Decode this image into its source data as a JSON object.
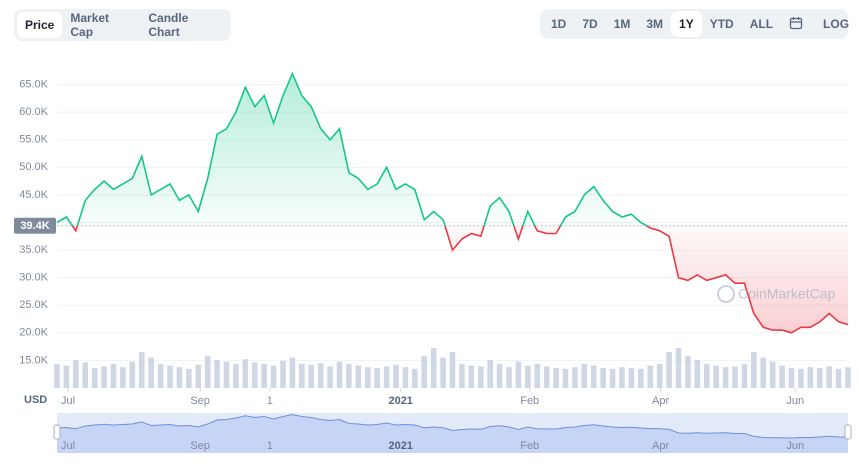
{
  "tabs": [
    "Price",
    "Market Cap",
    "Candle Chart"
  ],
  "active_tab": 0,
  "ranges": [
    "1D",
    "7D",
    "1M",
    "3M",
    "1Y",
    "YTD",
    "ALL"
  ],
  "active_range": 4,
  "log": "LOG",
  "watermark": "CoinMarketCap",
  "currency": "USD",
  "chart_data": {
    "type": "line",
    "values": [
      40000,
      41000,
      38500,
      44000,
      46000,
      47500,
      46000,
      47000,
      48000,
      52000,
      45000,
      46000,
      47000,
      44000,
      45000,
      42000,
      48000,
      56000,
      57000,
      60000,
      64500,
      61000,
      63000,
      58000,
      63000,
      67000,
      63000,
      61000,
      57000,
      55000,
      57000,
      49000,
      48000,
      46000,
      47000,
      50000,
      46000,
      47000,
      46000,
      40500,
      42000,
      40500,
      35000,
      37000,
      38000,
      37500,
      43000,
      44500,
      42000,
      37000,
      42000,
      38500,
      38000,
      38000,
      41000,
      42000,
      45000,
      46500,
      44000,
      42000,
      41000,
      41500,
      40000,
      39000,
      38500,
      37500,
      30000,
      29500,
      30500,
      29500,
      30000,
      30500,
      29000,
      29000,
      23500,
      21000,
      20500,
      20500,
      20000,
      21000,
      21000,
      22000,
      23500,
      22000,
      21500
    ],
    "volume": [
      30,
      28,
      35,
      32,
      25,
      27,
      30,
      26,
      33,
      45,
      38,
      30,
      28,
      26,
      24,
      29,
      40,
      35,
      33,
      30,
      36,
      32,
      30,
      28,
      34,
      38,
      30,
      29,
      31,
      27,
      33,
      30,
      28,
      26,
      25,
      27,
      29,
      26,
      24,
      40,
      50,
      38,
      45,
      30,
      28,
      27,
      35,
      30,
      26,
      33,
      28,
      30,
      27,
      25,
      24,
      26,
      30,
      28,
      25,
      24,
      26,
      25,
      24,
      28,
      30,
      45,
      50,
      40,
      35,
      30,
      28,
      26,
      27,
      30,
      45,
      38,
      33,
      28,
      25,
      24,
      26,
      25,
      27,
      24,
      26
    ],
    "volume_lim": [
      0,
      100
    ],
    "up_color": "#16c784",
    "down_color": "#ea3943",
    "baseline": {
      "value": 39400,
      "label": "39.4K"
    },
    "ylim": [
      10000,
      70000
    ],
    "yticks": [
      {
        "value": 15000,
        "label": "15.0K"
      },
      {
        "value": 20000,
        "label": "20.0K"
      },
      {
        "value": 25000,
        "label": "25.0K"
      },
      {
        "value": 30000,
        "label": "30.0K"
      },
      {
        "value": 35000,
        "label": "35.0K"
      },
      {
        "value": 40000,
        "label": "40.0K"
      },
      {
        "value": 45000,
        "label": "45.0K"
      },
      {
        "value": 50000,
        "label": "50.0K"
      },
      {
        "value": 55000,
        "label": "55.0K"
      },
      {
        "value": 60000,
        "label": "60.0K"
      },
      {
        "value": 65000,
        "label": "65.0K"
      }
    ],
    "xlim": [
      0,
      84
    ],
    "xticks": [
      {
        "value": 1.17,
        "label": "Jul"
      },
      {
        "value": 15.2,
        "label": "Sep"
      },
      {
        "value": 22.6,
        "label": "1"
      },
      {
        "value": 36.5,
        "label": "2021"
      },
      {
        "value": 50.2,
        "label": "Feb"
      },
      {
        "value": 64.1,
        "label": "Apr"
      },
      {
        "value": 78.4,
        "label": "Jun"
      }
    ],
    "grid": true
  }
}
